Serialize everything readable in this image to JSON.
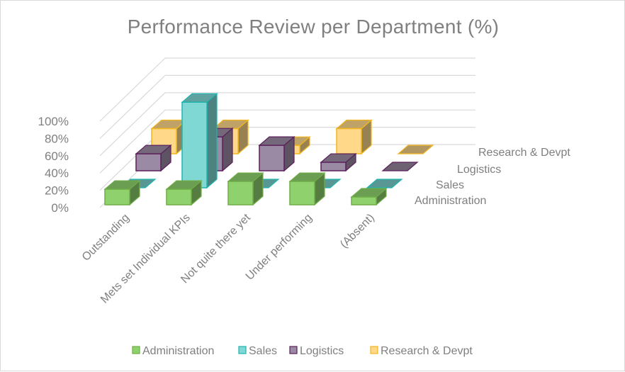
{
  "chart_data": {
    "type": "bar",
    "subtype": "3d-column",
    "title": "Performance Review per Department (%)",
    "xlabel": "",
    "ylabel": "",
    "categories": [
      "Outstanding",
      "Mets set Individual KPIs",
      "Not quite there yet",
      "Under performing",
      "(Absent)"
    ],
    "series": [
      {
        "name": "Administration",
        "color": "#8fd16d",
        "edge": "#70ad47",
        "values": [
          18,
          18,
          27,
          27,
          9
        ]
      },
      {
        "name": "Sales",
        "color": "#7fd8d4",
        "edge": "#1fb5b0",
        "values": [
          0,
          100,
          0,
          0,
          0
        ]
      },
      {
        "name": "Logistics",
        "color": "#9b8aa3",
        "edge": "#5c1f5c",
        "values": [
          20,
          40,
          30,
          10,
          0
        ]
      },
      {
        "name": "Research & Devpt",
        "color": "#ffd889",
        "edge": "#f1b71f",
        "values": [
          30,
          30,
          10,
          30,
          0
        ]
      }
    ],
    "yticks": [
      "0%",
      "20%",
      "40%",
      "60%",
      "80%",
      "100%"
    ],
    "ylim": [
      0,
      100
    ],
    "grid": true,
    "legend": "bottom"
  }
}
